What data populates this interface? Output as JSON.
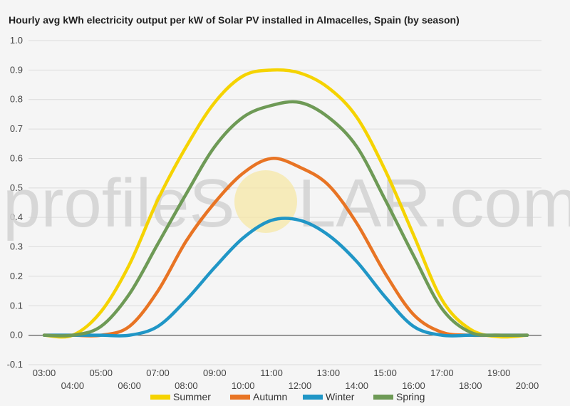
{
  "chart_data": {
    "type": "line",
    "title": "Hourly avg kWh electricity output per kW of Solar PV installed in Almacelles, Spain (by season)",
    "xlabel": "",
    "ylabel": "",
    "x": [
      "03:00",
      "04:00",
      "05:00",
      "06:00",
      "07:00",
      "08:00",
      "09:00",
      "10:00",
      "11:00",
      "12:00",
      "13:00",
      "14:00",
      "15:00",
      "16:00",
      "17:00",
      "18:00",
      "19:00",
      "20:00"
    ],
    "ylim": [
      -0.1,
      1.0
    ],
    "yticks": [
      "-0.1",
      "0.0",
      "0.1",
      "0.2",
      "0.3",
      "0.4",
      "0.5",
      "0.6",
      "0.7",
      "0.8",
      "0.9",
      "1.0"
    ],
    "grid": true,
    "legend_position": "bottom",
    "series": [
      {
        "name": "Summer",
        "color": "#f5d300",
        "values": [
          0.0,
          0.0,
          0.08,
          0.24,
          0.46,
          0.64,
          0.79,
          0.88,
          0.9,
          0.89,
          0.84,
          0.74,
          0.56,
          0.34,
          0.12,
          0.02,
          -0.005,
          0.0
        ]
      },
      {
        "name": "Autumn",
        "color": "#e87424",
        "values": [
          0.0,
          0.0,
          0.0,
          0.03,
          0.15,
          0.32,
          0.45,
          0.55,
          0.6,
          0.57,
          0.51,
          0.38,
          0.21,
          0.07,
          0.01,
          0.0,
          0.0,
          0.0
        ]
      },
      {
        "name": "Winter",
        "color": "#2096c6",
        "values": [
          0.0,
          0.0,
          0.0,
          0.0,
          0.03,
          0.12,
          0.23,
          0.33,
          0.39,
          0.39,
          0.34,
          0.25,
          0.13,
          0.03,
          0.0,
          0.0,
          0.0,
          0.0
        ]
      },
      {
        "name": "Spring",
        "color": "#6e9a56",
        "values": [
          0.0,
          0.0,
          0.03,
          0.14,
          0.31,
          0.48,
          0.64,
          0.74,
          0.78,
          0.79,
          0.74,
          0.64,
          0.46,
          0.27,
          0.09,
          0.01,
          0.0,
          0.0
        ]
      }
    ]
  },
  "watermark": {
    "left_text": "profileS",
    "right_text": "LAR.com"
  }
}
